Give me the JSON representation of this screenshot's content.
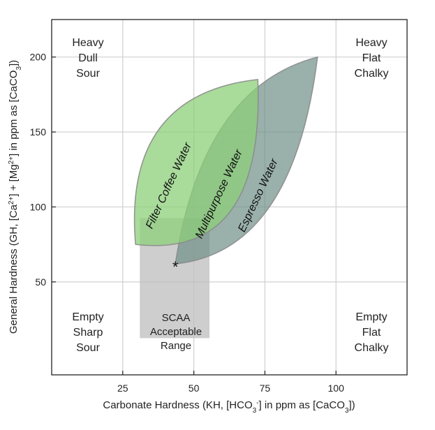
{
  "chart_data": {
    "type": "area",
    "xlabel": "Carbonate Hardness (KH, [HCO3-] in ppm as [CaCO3])",
    "ylabel": "General Hardness (GH, [Ca2+] + [Mg2+] in ppm as [CaCO3])",
    "xlim": [
      0,
      125
    ],
    "ylim": [
      -12,
      225
    ],
    "x_ticks": [
      25,
      50,
      75,
      100
    ],
    "y_ticks": [
      50,
      100,
      150,
      200
    ],
    "grid": true,
    "corner_labels": {
      "top_left": [
        "Heavy",
        "Dull",
        "Sour"
      ],
      "top_right": [
        "Heavy",
        "Flat",
        "Chalky"
      ],
      "bottom_left": [
        "Empty",
        "Sharp",
        "Sour"
      ],
      "bottom_right": [
        "Empty",
        "Flat",
        "Chalky"
      ]
    },
    "regions": [
      {
        "name": "SCAA Acceptable Range",
        "label_lines": [
          "SCAA",
          "Acceptable",
          "Range"
        ],
        "shape": "rect",
        "x_range": [
          31,
          55.5
        ],
        "y_range": [
          12.5,
          92.5
        ],
        "color": "#bdbdbd",
        "opacity": 0.75
      },
      {
        "name": "Espresso Water",
        "label": "Espresso Water",
        "shape": "leaf",
        "start": [
          43.5,
          62
        ],
        "end": [
          93.5,
          200
        ],
        "upper_control": [
          53,
          180
        ],
        "lower_control": [
          85,
          70
        ],
        "color": "#6f8f86",
        "opacity": 0.7
      },
      {
        "name": "Filter Coffee Water",
        "label": "Filter Coffee Water",
        "shape": "leaf",
        "start": [
          29.5,
          75
        ],
        "end": [
          72.5,
          185
        ],
        "upper_control": [
          25,
          175
        ],
        "lower_control": [
          75,
          65
        ],
        "color": "#8ccf7a",
        "opacity": 0.75
      }
    ],
    "overlap_label": "Multipurpose Water",
    "marker": {
      "symbol": "*",
      "x": 43.5,
      "y": 62
    }
  }
}
